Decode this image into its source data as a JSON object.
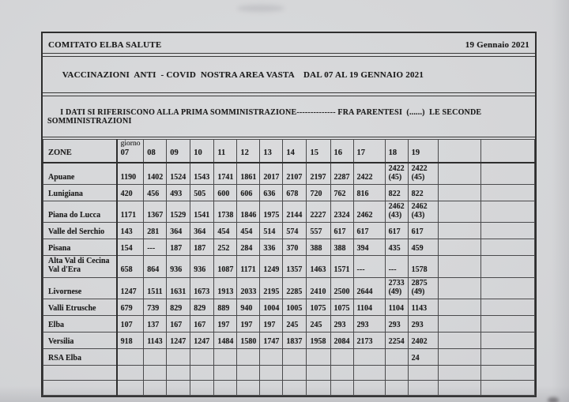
{
  "page": {
    "background_color": "#d6d7d9",
    "ink_color": "#1e1e1e",
    "line_color": "#3a3a3a",
    "header": {
      "title": "COMITATO ELBA SALUTE",
      "date": "19 Gennaio 2021"
    },
    "subtitle": "VACCINAZIONI  ANTI  - COVID  NOSTRA AREA VASTA    DAL 07 AL 19 GENNAIO 2021",
    "note": "I DATI SI RIFERISCONO ALLA PRIMA SOMMINISTRAZIONE-------------- FRA PARENTESI  (......)  LE SECONDE SOMMINISTRAZIONI"
  },
  "table": {
    "zone_header": "ZONE",
    "day_row_label": "giorno",
    "days": [
      "07",
      "08",
      "09",
      "10",
      "11",
      "12",
      "13",
      "14",
      "15",
      "16",
      "17",
      "18",
      "19"
    ],
    "rows": [
      {
        "zone": "Apuane",
        "values": [
          "1190",
          "1402",
          "1524",
          "1543",
          "1741",
          "1861",
          "2017",
          "2107",
          "2197",
          "2287",
          "2422",
          "2422\n(45)",
          "2422\n(45)"
        ]
      },
      {
        "zone": "Lunigiana",
        "values": [
          "420",
          "456",
          "493",
          "505",
          "600",
          "606",
          "636",
          "678",
          "720",
          "762",
          "816",
          "822",
          "822"
        ]
      },
      {
        "zone": "Piana do Lucca",
        "values": [
          "1171",
          "1367",
          "1529",
          "1541",
          "1738",
          "1846",
          "1975",
          "2144",
          "2227",
          "2324",
          "2462",
          "2462\n(43)",
          "2462\n(43)"
        ]
      },
      {
        "zone": "Valle del Serchio",
        "values": [
          "143",
          "281",
          "364",
          "364",
          "454",
          "454",
          "514",
          "574",
          "557",
          "617",
          "617",
          "617",
          "617"
        ]
      },
      {
        "zone": "Pisana",
        "values": [
          "154",
          "---",
          "187",
          "187",
          "252",
          "284",
          "336",
          "370",
          "388",
          "388",
          "394",
          "435",
          "459"
        ]
      },
      {
        "zone": "Alta Val di Cecina\nVal d'Era",
        "values": [
          "658",
          "864",
          "936",
          "936",
          "1087",
          "1171",
          "1249",
          "1357",
          "1463",
          "1571",
          "---",
          "---",
          "1578"
        ]
      },
      {
        "zone": "Livornese",
        "values": [
          "1247",
          "1511",
          "1631",
          "1673",
          "1913",
          "2033",
          "2195",
          "2285",
          "2410",
          "2500",
          "2644",
          "2733\n(49)",
          "2875\n(49)"
        ]
      },
      {
        "zone": "Valli Etrusche",
        "values": [
          "679",
          "739",
          "829",
          "829",
          "889",
          "940",
          "1004",
          "1005",
          "1075",
          "1075",
          "1104",
          "1104",
          "1143"
        ]
      },
      {
        "zone": "Elba",
        "values": [
          "107",
          "137",
          "167",
          "167",
          "197",
          "197",
          "197",
          "245",
          "245",
          "293",
          "293",
          "293",
          "293"
        ]
      },
      {
        "zone": "Versilia",
        "values": [
          "918",
          "1143",
          "1247",
          "1247",
          "1484",
          "1580",
          "1747",
          "1837",
          "1958",
          "2084",
          "2173",
          "2254",
          "2402"
        ]
      },
      {
        "zone": "RSA Elba",
        "values": [
          "",
          "",
          "",
          "",
          "",
          "",
          "",
          "",
          "",
          "",
          "",
          "",
          "24"
        ]
      },
      {
        "zone": "",
        "values": [
          "",
          "",
          "",
          "",
          "",
          "",
          "",
          "",
          "",
          "",
          "",
          "",
          ""
        ]
      },
      {
        "zone": "",
        "values": [
          "",
          "",
          "",
          "",
          "",
          "",
          "",
          "",
          "",
          "",
          "",
          "",
          ""
        ]
      }
    ]
  }
}
